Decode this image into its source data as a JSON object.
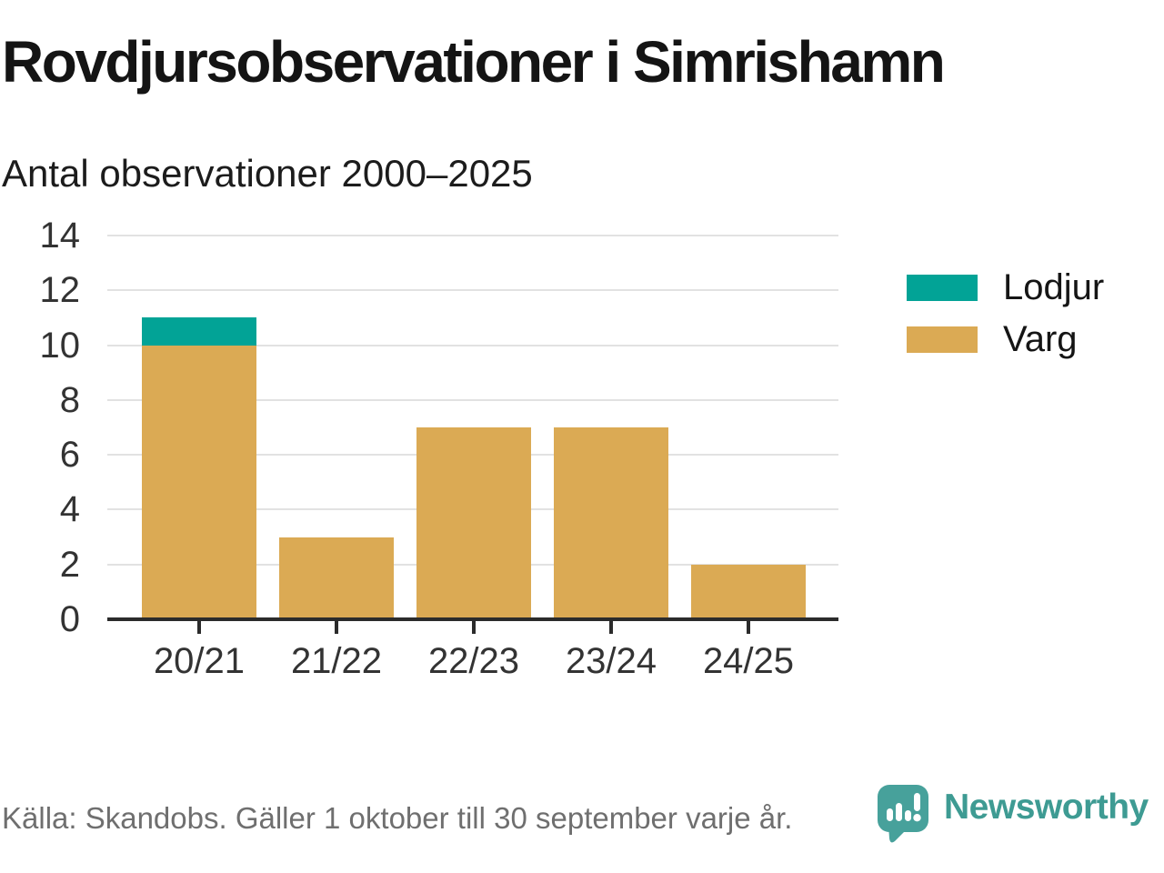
{
  "title": "Rovdjursobservationer i Simrishamn",
  "subtitle": "Antal observationer 2000–2025",
  "source_note": "Källa: Skandobs. Gäller 1 oktober till 30 september varje år.",
  "branding": {
    "name": "Newsworthy",
    "icon": "newsworthy-speech-bubble-barchart-icon",
    "icon_color": "#47a19b",
    "text_color": "#3e9b93"
  },
  "colors": {
    "title": "#141414",
    "subtitle": "#1c1c1c",
    "label": "#333333",
    "grid": "#e2e2e2",
    "axis": "#2b2b2b",
    "footer": "#6f6f6f"
  },
  "chart_data": {
    "type": "bar",
    "stacked": true,
    "title": "Rovdjursobservationer i Simrishamn",
    "subtitle": "Antal observationer 2000–2025",
    "categories": [
      "20/21",
      "21/22",
      "22/23",
      "23/24",
      "24/25"
    ],
    "series": [
      {
        "name": "Lodjur",
        "color": "#02a396",
        "values": [
          1,
          0,
          0,
          0,
          0
        ]
      },
      {
        "name": "Varg",
        "color": "#dbaa54",
        "values": [
          10,
          3,
          7,
          7,
          2
        ]
      }
    ],
    "totals": [
      11,
      3,
      7,
      7,
      2
    ],
    "xlabel": "",
    "ylabel": "",
    "ylim": [
      0,
      14
    ],
    "yticks": [
      0,
      2,
      4,
      6,
      8,
      10,
      12,
      14
    ],
    "grid": "horizontal",
    "legend_position": "right"
  }
}
